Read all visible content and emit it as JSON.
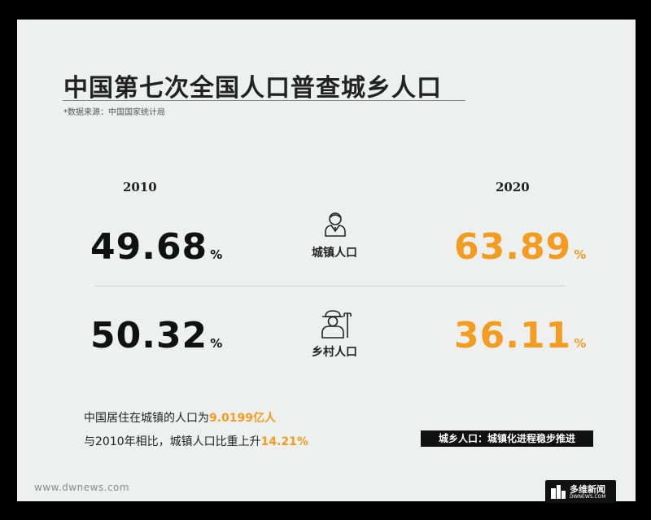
{
  "header": {
    "title": "中国第七次全国人口普查城乡人口",
    "source": "*数据来源：中国国家统计局"
  },
  "chart_data": {
    "type": "table",
    "years": [
      "2010",
      "2020"
    ],
    "unit": "%",
    "rows": [
      {
        "label": "城镇人口",
        "values": [
          "49.68",
          "63.89"
        ]
      },
      {
        "label": "乡村人口",
        "values": [
          "50.32",
          "36.11"
        ]
      }
    ]
  },
  "summary": {
    "line1_prefix": "中国居住在城镇的人口为",
    "line1_value": "9.0199亿人",
    "line2_prefix": "与2010年相比，城镇人口比重上升",
    "line2_value": "14.21%"
  },
  "tag": "城乡人口：城镇化进程稳步推进",
  "footer": {
    "site": "www.dwnews.com",
    "logo_cn": "多维新闻",
    "logo_en": "DWNEWS.COM"
  },
  "colors": {
    "accent": "#f39c1f",
    "text": "#111111",
    "background": "#eef0ef"
  },
  "icons": {
    "urban": "businessman-icon",
    "rural": "farmer-icon"
  }
}
